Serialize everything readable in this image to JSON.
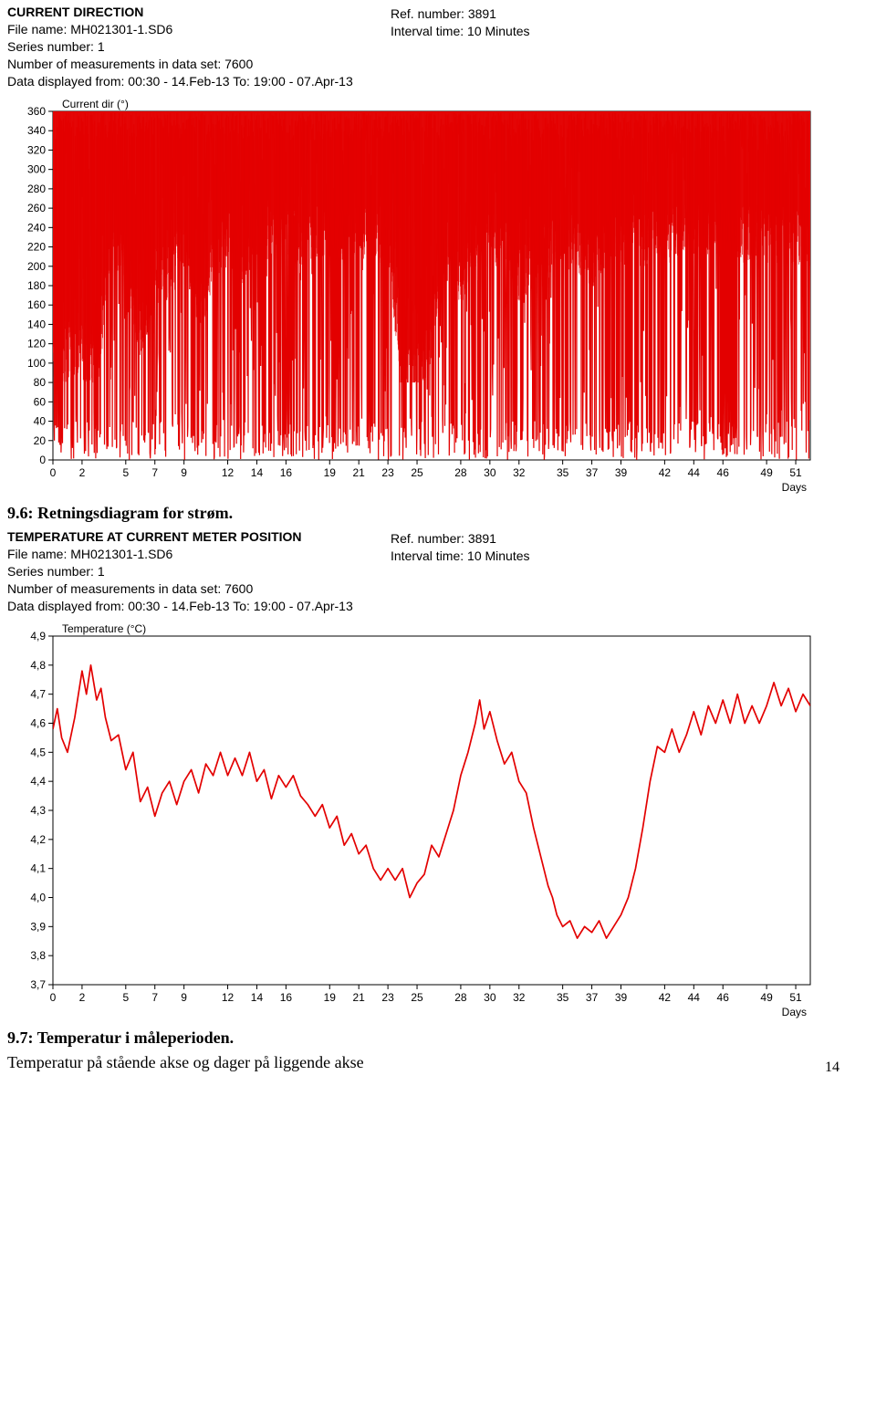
{
  "chart1": {
    "header": {
      "title": "CURRENT DIRECTION",
      "file": "File name: MH021301-1.SD6",
      "series": "Series number: 1",
      "nmeas": "Number of measurements in data set: 7600",
      "range": "Data displayed from: 00:30 - 14.Feb-13   To: 19:00 - 07.Apr-13",
      "ref": "Ref. number: 3891",
      "interval": "Interval time: 10 Minutes"
    },
    "ylabel": "Current dir (°)",
    "xlabel": "Days",
    "type": "line",
    "line_color": "#e30000",
    "line_width": 1.2,
    "background_color": "#ffffff",
    "axis_color": "#000000",
    "ylim": [
      0,
      360
    ],
    "yticks": [
      0,
      20,
      40,
      60,
      80,
      100,
      120,
      140,
      160,
      180,
      200,
      220,
      240,
      260,
      280,
      300,
      320,
      340,
      360
    ],
    "xlim": [
      0,
      52
    ],
    "xticks": [
      0,
      2,
      5,
      7,
      9,
      12,
      14,
      16,
      19,
      21,
      23,
      25,
      28,
      30,
      32,
      35,
      37,
      39,
      42,
      44,
      46,
      49,
      51
    ],
    "tick_fontsize": 12,
    "dense_noise": true,
    "base_centers": [
      [
        0,
        180
      ],
      [
        2,
        180
      ],
      [
        3,
        160
      ],
      [
        4,
        300
      ],
      [
        5,
        280
      ],
      [
        6,
        200
      ],
      [
        7,
        260
      ],
      [
        8,
        260
      ],
      [
        9,
        300
      ],
      [
        10,
        220
      ],
      [
        11,
        280
      ],
      [
        12,
        300
      ],
      [
        13,
        280
      ],
      [
        14,
        310
      ],
      [
        15,
        300
      ],
      [
        16,
        310
      ],
      [
        17,
        300
      ],
      [
        18,
        310
      ],
      [
        19,
        300
      ],
      [
        20,
        300
      ],
      [
        21,
        305
      ],
      [
        22,
        300
      ],
      [
        23,
        305
      ],
      [
        24,
        150
      ],
      [
        25,
        160
      ],
      [
        26,
        200
      ],
      [
        27,
        300
      ],
      [
        28,
        260
      ],
      [
        29,
        290
      ],
      [
        30,
        300
      ],
      [
        31,
        300
      ],
      [
        32,
        260
      ],
      [
        33,
        280
      ],
      [
        34,
        290
      ],
      [
        35,
        300
      ],
      [
        36,
        290
      ],
      [
        37,
        280
      ],
      [
        38,
        300
      ],
      [
        39,
        300
      ],
      [
        40,
        300
      ],
      [
        41,
        300
      ],
      [
        42,
        300
      ],
      [
        43,
        310
      ],
      [
        44,
        300
      ],
      [
        45,
        310
      ],
      [
        46,
        310
      ],
      [
        47,
        305
      ],
      [
        48,
        300
      ],
      [
        49,
        300
      ],
      [
        50,
        305
      ],
      [
        51,
        300
      ],
      [
        52,
        300
      ]
    ]
  },
  "caption1": "9.6: Retningsdiagram for strøm.",
  "chart2": {
    "header": {
      "title": "TEMPERATURE AT CURRENT METER POSITION",
      "file": "File name: MH021301-1.SD6",
      "series": "Series number: 1",
      "nmeas": "Number of measurements in data set: 7600",
      "range": "Data displayed from: 00:30 - 14.Feb-13   To: 19:00 - 07.Apr-13",
      "ref": "Ref. number: 3891",
      "interval": "Interval time: 10 Minutes"
    },
    "ylabel": "Temperature (°C)",
    "xlabel": "Days",
    "type": "line",
    "line_color": "#e30000",
    "line_width": 1.7,
    "background_color": "#ffffff",
    "axis_color": "#000000",
    "ylim": [
      3.7,
      4.9
    ],
    "yticks_labels": [
      "3,7",
      "3,8",
      "3,9",
      "4,0",
      "4,1",
      "4,2",
      "4,3",
      "4,4",
      "4,5",
      "4,6",
      "4,7",
      "4,8",
      "4,9"
    ],
    "yticks": [
      3.7,
      3.8,
      3.9,
      4.0,
      4.1,
      4.2,
      4.3,
      4.4,
      4.5,
      4.6,
      4.7,
      4.8,
      4.9
    ],
    "xlim": [
      0,
      52
    ],
    "xticks": [
      0,
      2,
      5,
      7,
      9,
      12,
      14,
      16,
      19,
      21,
      23,
      25,
      28,
      30,
      32,
      35,
      37,
      39,
      42,
      44,
      46,
      49,
      51
    ],
    "tick_fontsize": 12,
    "data": [
      [
        0,
        4.58
      ],
      [
        0.3,
        4.65
      ],
      [
        0.6,
        4.55
      ],
      [
        1.0,
        4.5
      ],
      [
        1.5,
        4.62
      ],
      [
        2.0,
        4.78
      ],
      [
        2.3,
        4.7
      ],
      [
        2.6,
        4.8
      ],
      [
        3.0,
        4.68
      ],
      [
        3.3,
        4.72
      ],
      [
        3.6,
        4.62
      ],
      [
        4.0,
        4.54
      ],
      [
        4.5,
        4.56
      ],
      [
        5.0,
        4.44
      ],
      [
        5.5,
        4.5
      ],
      [
        6.0,
        4.33
      ],
      [
        6.5,
        4.38
      ],
      [
        7.0,
        4.28
      ],
      [
        7.5,
        4.36
      ],
      [
        8.0,
        4.4
      ],
      [
        8.5,
        4.32
      ],
      [
        9.0,
        4.4
      ],
      [
        9.5,
        4.44
      ],
      [
        10.0,
        4.36
      ],
      [
        10.5,
        4.46
      ],
      [
        11.0,
        4.42
      ],
      [
        11.5,
        4.5
      ],
      [
        12.0,
        4.42
      ],
      [
        12.5,
        4.48
      ],
      [
        13.0,
        4.42
      ],
      [
        13.5,
        4.5
      ],
      [
        14.0,
        4.4
      ],
      [
        14.5,
        4.44
      ],
      [
        15.0,
        4.34
      ],
      [
        15.5,
        4.42
      ],
      [
        16.0,
        4.38
      ],
      [
        16.5,
        4.42
      ],
      [
        17.0,
        4.35
      ],
      [
        17.5,
        4.32
      ],
      [
        18.0,
        4.28
      ],
      [
        18.5,
        4.32
      ],
      [
        19.0,
        4.24
      ],
      [
        19.5,
        4.28
      ],
      [
        20.0,
        4.18
      ],
      [
        20.5,
        4.22
      ],
      [
        21.0,
        4.15
      ],
      [
        21.5,
        4.18
      ],
      [
        22.0,
        4.1
      ],
      [
        22.5,
        4.06
      ],
      [
        23.0,
        4.1
      ],
      [
        23.5,
        4.06
      ],
      [
        24.0,
        4.1
      ],
      [
        24.5,
        4.0
      ],
      [
        25.0,
        4.05
      ],
      [
        25.5,
        4.08
      ],
      [
        26.0,
        4.18
      ],
      [
        26.5,
        4.14
      ],
      [
        27.0,
        4.22
      ],
      [
        27.5,
        4.3
      ],
      [
        28.0,
        4.42
      ],
      [
        28.5,
        4.5
      ],
      [
        29.0,
        4.6
      ],
      [
        29.3,
        4.68
      ],
      [
        29.6,
        4.58
      ],
      [
        30.0,
        4.64
      ],
      [
        30.5,
        4.54
      ],
      [
        31.0,
        4.46
      ],
      [
        31.5,
        4.5
      ],
      [
        32.0,
        4.4
      ],
      [
        32.5,
        4.36
      ],
      [
        33.0,
        4.24
      ],
      [
        33.5,
        4.14
      ],
      [
        34.0,
        4.04
      ],
      [
        34.3,
        4.0
      ],
      [
        34.6,
        3.94
      ],
      [
        35.0,
        3.9
      ],
      [
        35.5,
        3.92
      ],
      [
        36.0,
        3.86
      ],
      [
        36.5,
        3.9
      ],
      [
        37.0,
        3.88
      ],
      [
        37.5,
        3.92
      ],
      [
        38.0,
        3.86
      ],
      [
        38.5,
        3.9
      ],
      [
        39.0,
        3.94
      ],
      [
        39.5,
        4.0
      ],
      [
        40.0,
        4.1
      ],
      [
        40.5,
        4.24
      ],
      [
        41.0,
        4.4
      ],
      [
        41.5,
        4.52
      ],
      [
        42.0,
        4.5
      ],
      [
        42.5,
        4.58
      ],
      [
        43.0,
        4.5
      ],
      [
        43.5,
        4.56
      ],
      [
        44.0,
        4.64
      ],
      [
        44.5,
        4.56
      ],
      [
        45.0,
        4.66
      ],
      [
        45.5,
        4.6
      ],
      [
        46.0,
        4.68
      ],
      [
        46.5,
        4.6
      ],
      [
        47.0,
        4.7
      ],
      [
        47.5,
        4.6
      ],
      [
        48.0,
        4.66
      ],
      [
        48.5,
        4.6
      ],
      [
        49.0,
        4.66
      ],
      [
        49.5,
        4.74
      ],
      [
        50.0,
        4.66
      ],
      [
        50.5,
        4.72
      ],
      [
        51.0,
        4.64
      ],
      [
        51.5,
        4.7
      ],
      [
        52.0,
        4.66
      ]
    ]
  },
  "caption2": "9.7: Temperatur i måleperioden.",
  "subcaption2": "Temperatur på stående akse og dager på liggende akse",
  "page_number": "14"
}
